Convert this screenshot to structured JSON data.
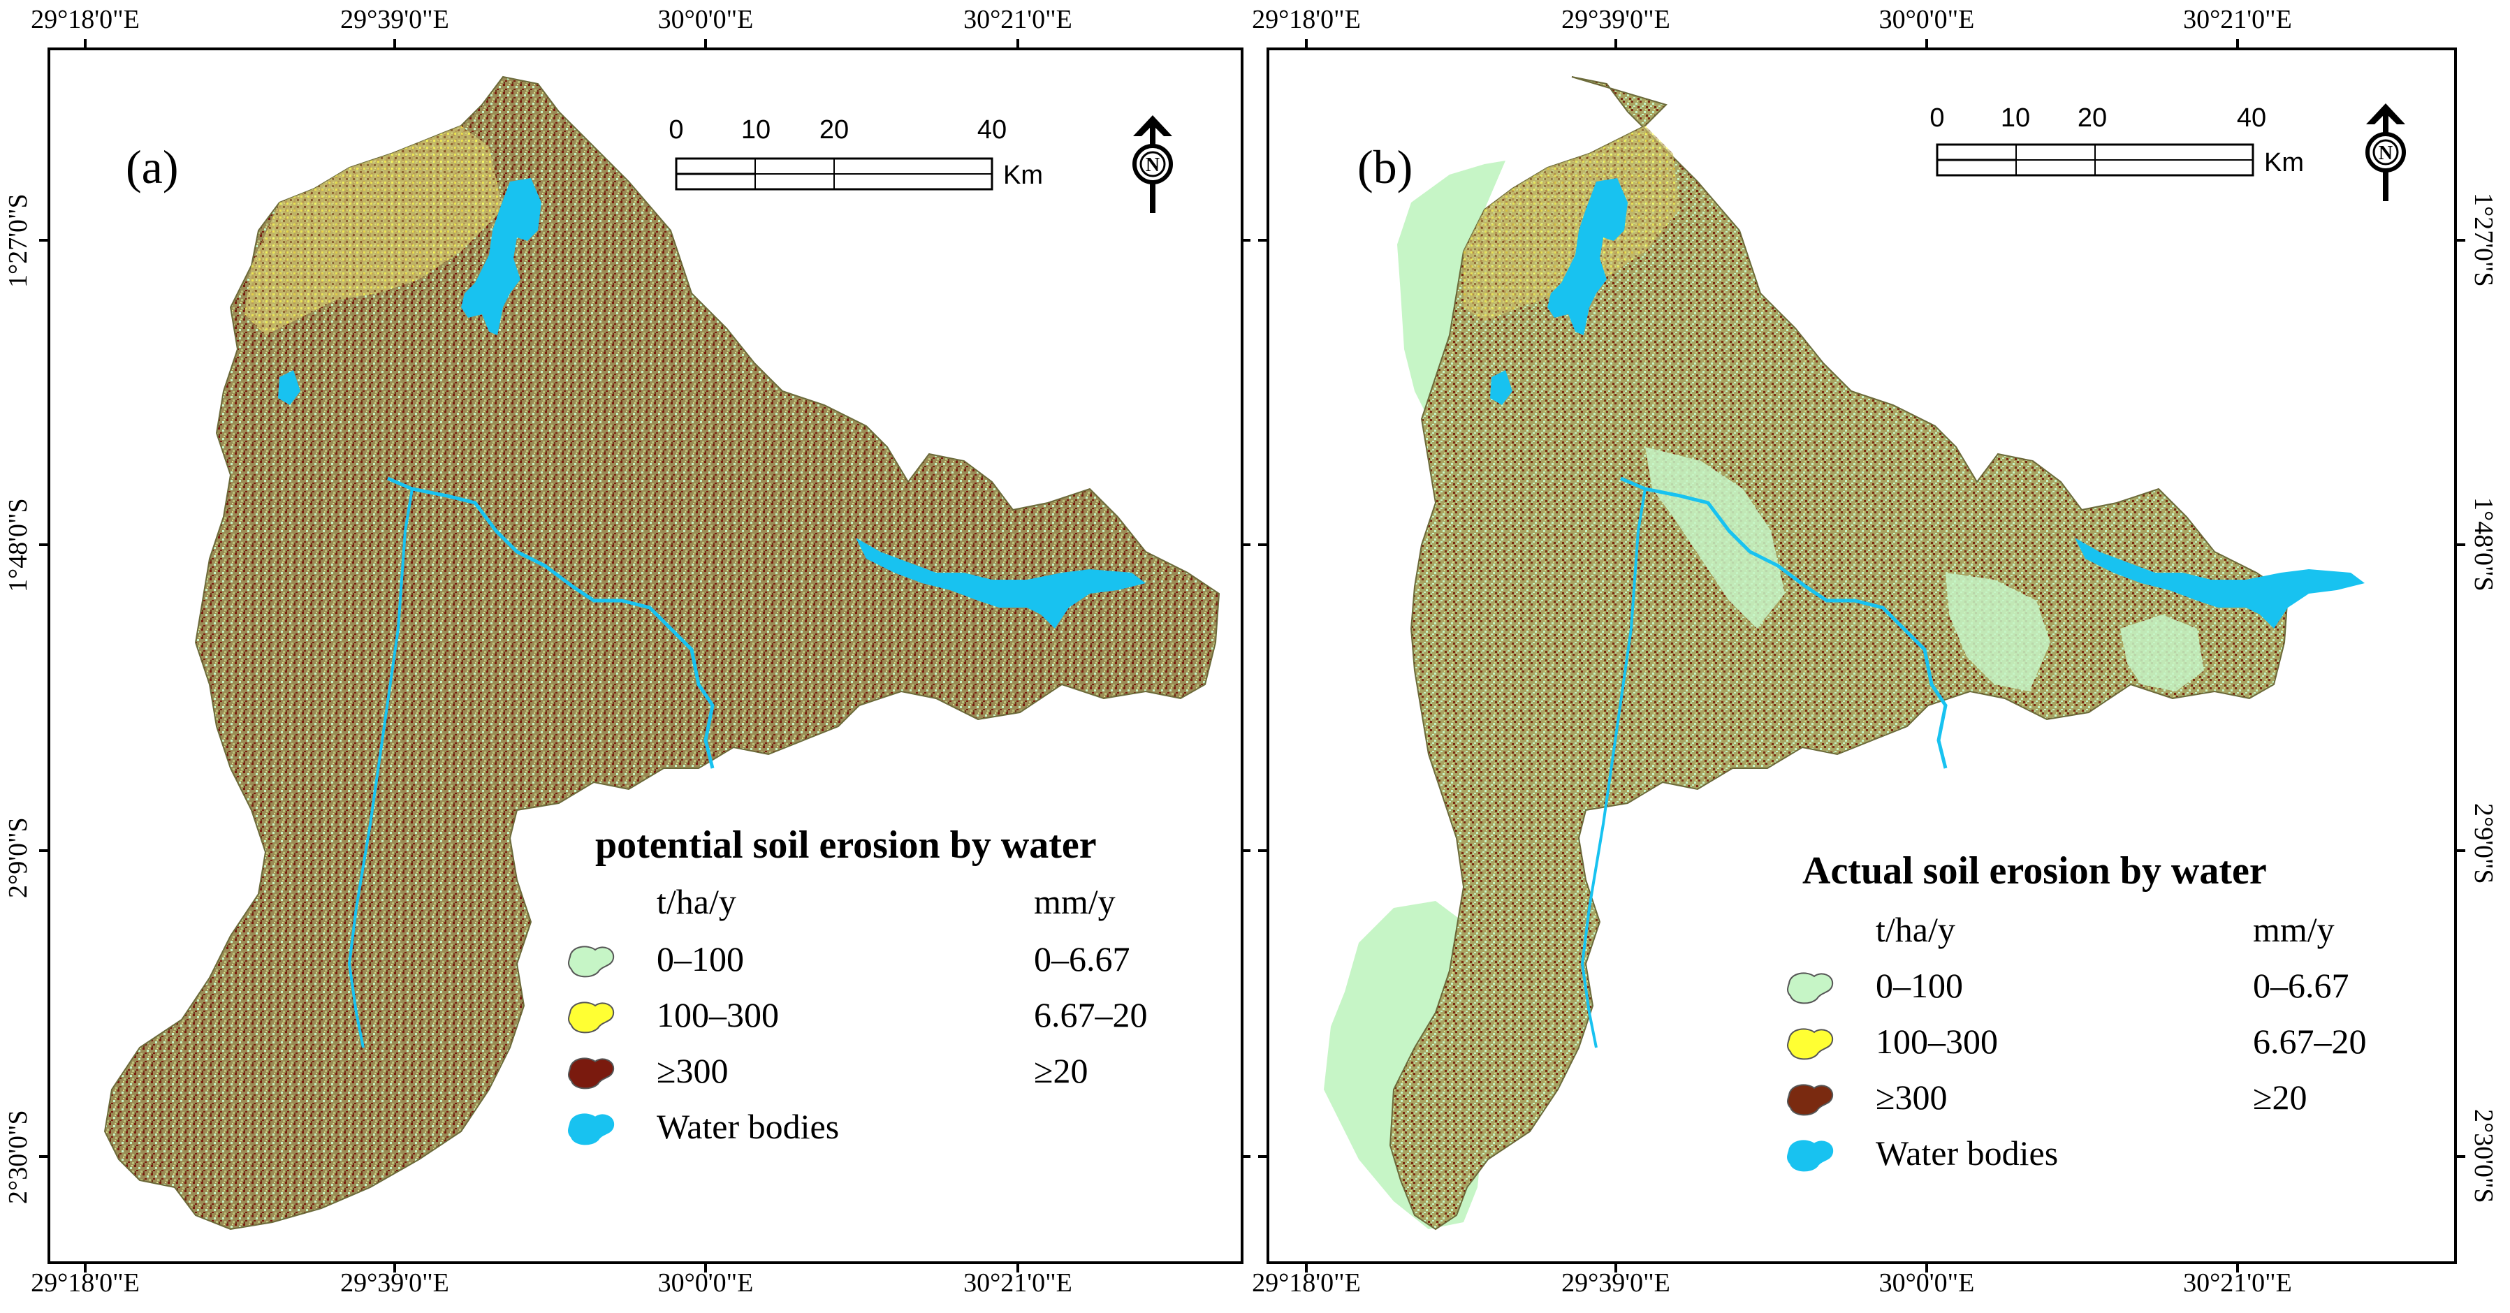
{
  "colors": {
    "low": "#c6f5c6",
    "moderate": "#ffff33",
    "high": "#7a1a0e",
    "water": "#18c2f0",
    "soil_mix": "#9a8c56",
    "frame": "#000000"
  },
  "coordinates": {
    "top": [
      "29°18'0\"E",
      "29°39'0\"E",
      "30°0'0\"E",
      "30°21'0\"E"
    ],
    "bottom": [
      "29°18'0\"E",
      "29°39'0\"E",
      "30°0'0\"E",
      "30°21'0\"E"
    ],
    "left": [
      "1°27'0\"S",
      "1°48'0\"S",
      "2°9'0\"S",
      "2°30'0\"S"
    ],
    "right": [
      "1°27'0\"S",
      "1°48'0\"S",
      "2°9'0\"S",
      "2°30'0\"S"
    ]
  },
  "scalebar": {
    "ticks": [
      "0",
      "10",
      "20",
      "40"
    ],
    "unit": "Km"
  },
  "north_arrow": {
    "letter": "N",
    "icon": "north-arrow-icon"
  },
  "legend": {
    "unit_left": "t/ha/y",
    "unit_right": "mm/y",
    "items": [
      {
        "label": "0–100",
        "value": "0–6.67",
        "color": "#c6f5c6"
      },
      {
        "label": "100–300",
        "value": "6.67–20",
        "color": "#ffff33"
      },
      {
        "label": "≥300",
        "value": "≥20",
        "color": "#7a1a0e"
      },
      {
        "label": "Water bodies",
        "value": "",
        "color": "#18c2f0"
      }
    ]
  },
  "panels": [
    {
      "letter": "(a)",
      "title": "potential soil erosion by water",
      "high_color": "#7a1a0e"
    },
    {
      "letter": "(b)",
      "title": "Actual soil erosion by water",
      "high_color": "#7a2a10"
    }
  ]
}
